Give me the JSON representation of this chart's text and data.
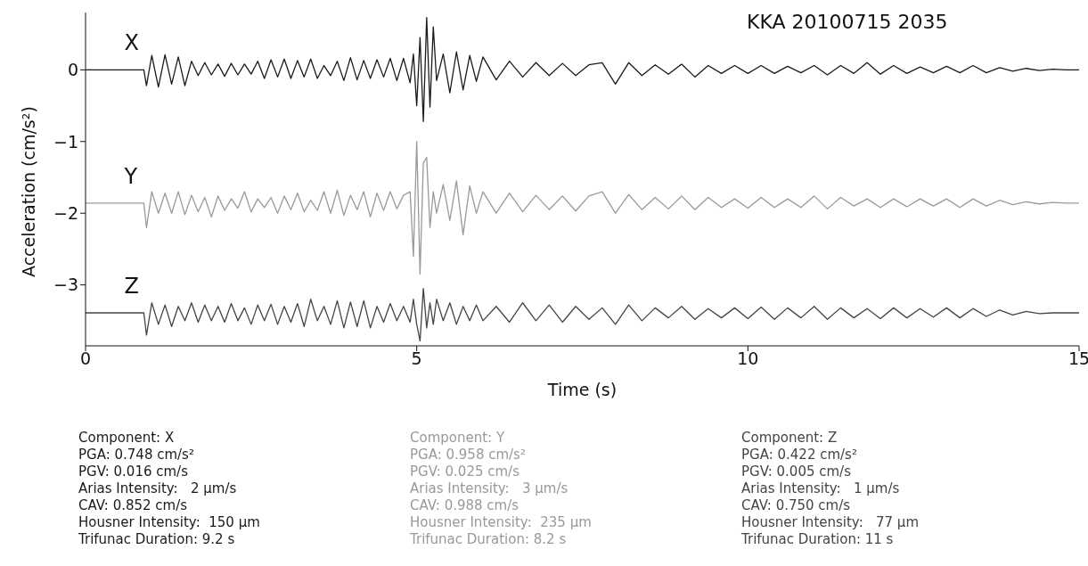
{
  "chart_data": {
    "type": "line",
    "title": "KKA 20100715 2035",
    "xlabel": "Time (s)",
    "ylabel": "Acceleration (cm/s²)",
    "xlim": [
      0,
      15
    ],
    "xticks": [
      0,
      5,
      10,
      15
    ],
    "ylim": [
      -3.85,
      0.8
    ],
    "yticks": [
      {
        "value": -3,
        "label": "−3"
      },
      {
        "value": -2,
        "label": "−2"
      },
      {
        "value": -1,
        "label": "−1"
      },
      0
    ],
    "grid": false,
    "marker": "none",
    "line_style": "solid",
    "x": [
      0,
      0.88,
      0.92,
      1.0,
      1.1,
      1.2,
      1.3,
      1.4,
      1.5,
      1.6,
      1.7,
      1.8,
      1.9,
      2.0,
      2.1,
      2.2,
      2.3,
      2.4,
      2.5,
      2.6,
      2.7,
      2.8,
      2.9,
      3.0,
      3.1,
      3.2,
      3.3,
      3.4,
      3.5,
      3.6,
      3.7,
      3.8,
      3.9,
      4.0,
      4.1,
      4.2,
      4.3,
      4.4,
      4.5,
      4.6,
      4.7,
      4.8,
      4.9,
      4.95,
      5.0,
      5.05,
      5.1,
      5.15,
      5.2,
      5.25,
      5.3,
      5.4,
      5.5,
      5.6,
      5.7,
      5.8,
      5.9,
      6.0,
      6.2,
      6.4,
      6.6,
      6.8,
      7.0,
      7.2,
      7.4,
      7.6,
      7.8,
      8.0,
      8.2,
      8.4,
      8.6,
      8.8,
      9.0,
      9.2,
      9.4,
      9.6,
      9.8,
      10.0,
      10.2,
      10.4,
      10.6,
      10.8,
      11.0,
      11.2,
      11.4,
      11.6,
      11.8,
      12.0,
      12.2,
      12.4,
      12.6,
      12.8,
      13.0,
      13.2,
      13.4,
      13.6,
      13.8,
      14.0,
      14.2,
      14.4,
      14.6,
      14.8,
      15.0
    ],
    "series": [
      {
        "name": "X",
        "color": "#1a1a1a",
        "values": [
          0,
          0,
          -0.22,
          0.2,
          -0.24,
          0.21,
          -0.2,
          0.18,
          -0.22,
          0.12,
          -0.08,
          0.1,
          -0.07,
          0.08,
          -0.09,
          0.09,
          -0.07,
          0.08,
          -0.06,
          0.12,
          -0.12,
          0.14,
          -0.1,
          0.15,
          -0.12,
          0.13,
          -0.1,
          0.15,
          -0.12,
          0.06,
          -0.08,
          0.12,
          -0.15,
          0.17,
          -0.14,
          0.13,
          -0.12,
          0.14,
          -0.1,
          0.16,
          -0.15,
          0.16,
          -0.18,
          0.22,
          -0.5,
          0.45,
          -0.72,
          0.73,
          -0.52,
          0.6,
          -0.15,
          0.22,
          -0.32,
          0.25,
          -0.28,
          0.2,
          -0.16,
          0.18,
          -0.14,
          0.12,
          -0.1,
          0.1,
          -0.08,
          0.09,
          -0.08,
          0.07,
          0.1,
          -0.2,
          0.1,
          -0.08,
          0.07,
          -0.06,
          0.08,
          -0.1,
          0.06,
          -0.05,
          0.06,
          -0.05,
          0.06,
          -0.05,
          0.05,
          -0.04,
          0.06,
          -0.07,
          0.06,
          -0.05,
          0.1,
          -0.06,
          0.06,
          -0.05,
          0.04,
          -0.04,
          0.05,
          -0.04,
          0.06,
          -0.04,
          0.03,
          -0.02,
          0.02,
          -0.01,
          0.01,
          0,
          0
        ]
      },
      {
        "name": "Y",
        "color": "#999999",
        "values": [
          -1.86,
          -1.86,
          -2.2,
          -1.7,
          -2.0,
          -1.72,
          -2.0,
          -1.7,
          -2.02,
          -1.75,
          -1.98,
          -1.78,
          -2.05,
          -1.76,
          -1.96,
          -1.8,
          -1.93,
          -1.7,
          -1.98,
          -1.8,
          -1.92,
          -1.78,
          -2.0,
          -1.76,
          -1.95,
          -1.72,
          -1.98,
          -1.82,
          -1.96,
          -1.7,
          -2.0,
          -1.68,
          -2.03,
          -1.75,
          -1.95,
          -1.7,
          -2.05,
          -1.72,
          -1.96,
          -1.7,
          -1.94,
          -1.75,
          -1.7,
          -2.6,
          -1.0,
          -2.85,
          -1.3,
          -1.22,
          -2.2,
          -1.7,
          -2.0,
          -1.6,
          -2.1,
          -1.55,
          -2.3,
          -1.62,
          -2.0,
          -1.7,
          -2.0,
          -1.72,
          -1.98,
          -1.75,
          -1.95,
          -1.76,
          -1.97,
          -1.76,
          -1.7,
          -2.0,
          -1.74,
          -1.95,
          -1.78,
          -1.94,
          -1.76,
          -1.95,
          -1.78,
          -1.92,
          -1.8,
          -1.93,
          -1.78,
          -1.92,
          -1.8,
          -1.92,
          -1.76,
          -1.94,
          -1.78,
          -1.9,
          -1.8,
          -1.92,
          -1.8,
          -1.91,
          -1.8,
          -1.9,
          -1.8,
          -1.92,
          -1.8,
          -1.9,
          -1.82,
          -1.88,
          -1.84,
          -1.87,
          -1.85,
          -1.86,
          -1.86
        ]
      },
      {
        "name": "Z",
        "color": "#444444",
        "values": [
          -3.39,
          -3.39,
          -3.7,
          -3.25,
          -3.55,
          -3.28,
          -3.58,
          -3.3,
          -3.5,
          -3.25,
          -3.52,
          -3.28,
          -3.5,
          -3.3,
          -3.52,
          -3.26,
          -3.5,
          -3.32,
          -3.55,
          -3.28,
          -3.5,
          -3.27,
          -3.55,
          -3.3,
          -3.52,
          -3.26,
          -3.58,
          -3.2,
          -3.5,
          -3.3,
          -3.55,
          -3.22,
          -3.6,
          -3.24,
          -3.58,
          -3.22,
          -3.6,
          -3.3,
          -3.52,
          -3.26,
          -3.5,
          -3.3,
          -3.52,
          -3.2,
          -3.55,
          -3.78,
          -3.05,
          -3.6,
          -3.25,
          -3.55,
          -3.2,
          -3.5,
          -3.25,
          -3.55,
          -3.3,
          -3.5,
          -3.28,
          -3.5,
          -3.3,
          -3.52,
          -3.25,
          -3.5,
          -3.28,
          -3.52,
          -3.3,
          -3.48,
          -3.32,
          -3.55,
          -3.28,
          -3.5,
          -3.32,
          -3.46,
          -3.3,
          -3.48,
          -3.33,
          -3.46,
          -3.32,
          -3.47,
          -3.31,
          -3.48,
          -3.32,
          -3.46,
          -3.3,
          -3.48,
          -3.32,
          -3.46,
          -3.33,
          -3.47,
          -3.32,
          -3.46,
          -3.33,
          -3.45,
          -3.32,
          -3.46,
          -3.33,
          -3.44,
          -3.35,
          -3.42,
          -3.37,
          -3.4,
          -3.39,
          -3.39,
          -3.39
        ]
      }
    ],
    "annotations": [
      "Component: X\nPGA: 0.748 cm/s²\nPGV: 0.016 cm/s\nArias Intensity:   2 µm/s\nCAV: 0.852 cm/s\nHousner Intensity:  150 µm\nTrifunac Duration: 9.2 s",
      "Component: Y\nPGA: 0.958 cm/s²\nPGV: 0.025 cm/s\nArias Intensity:   3 µm/s\nCAV: 0.988 cm/s\nHousner Intensity:  235 µm\nTrifunac Duration: 8.2 s",
      "Component: Z\nPGA: 0.422 cm/s²\nPGV: 0.005 cm/s\nArias Intensity:   1 µm/s\nCAV: 0.750 cm/s\nHousner Intensity:   77 µm\nTrifunac Duration: 11 s"
    ]
  }
}
